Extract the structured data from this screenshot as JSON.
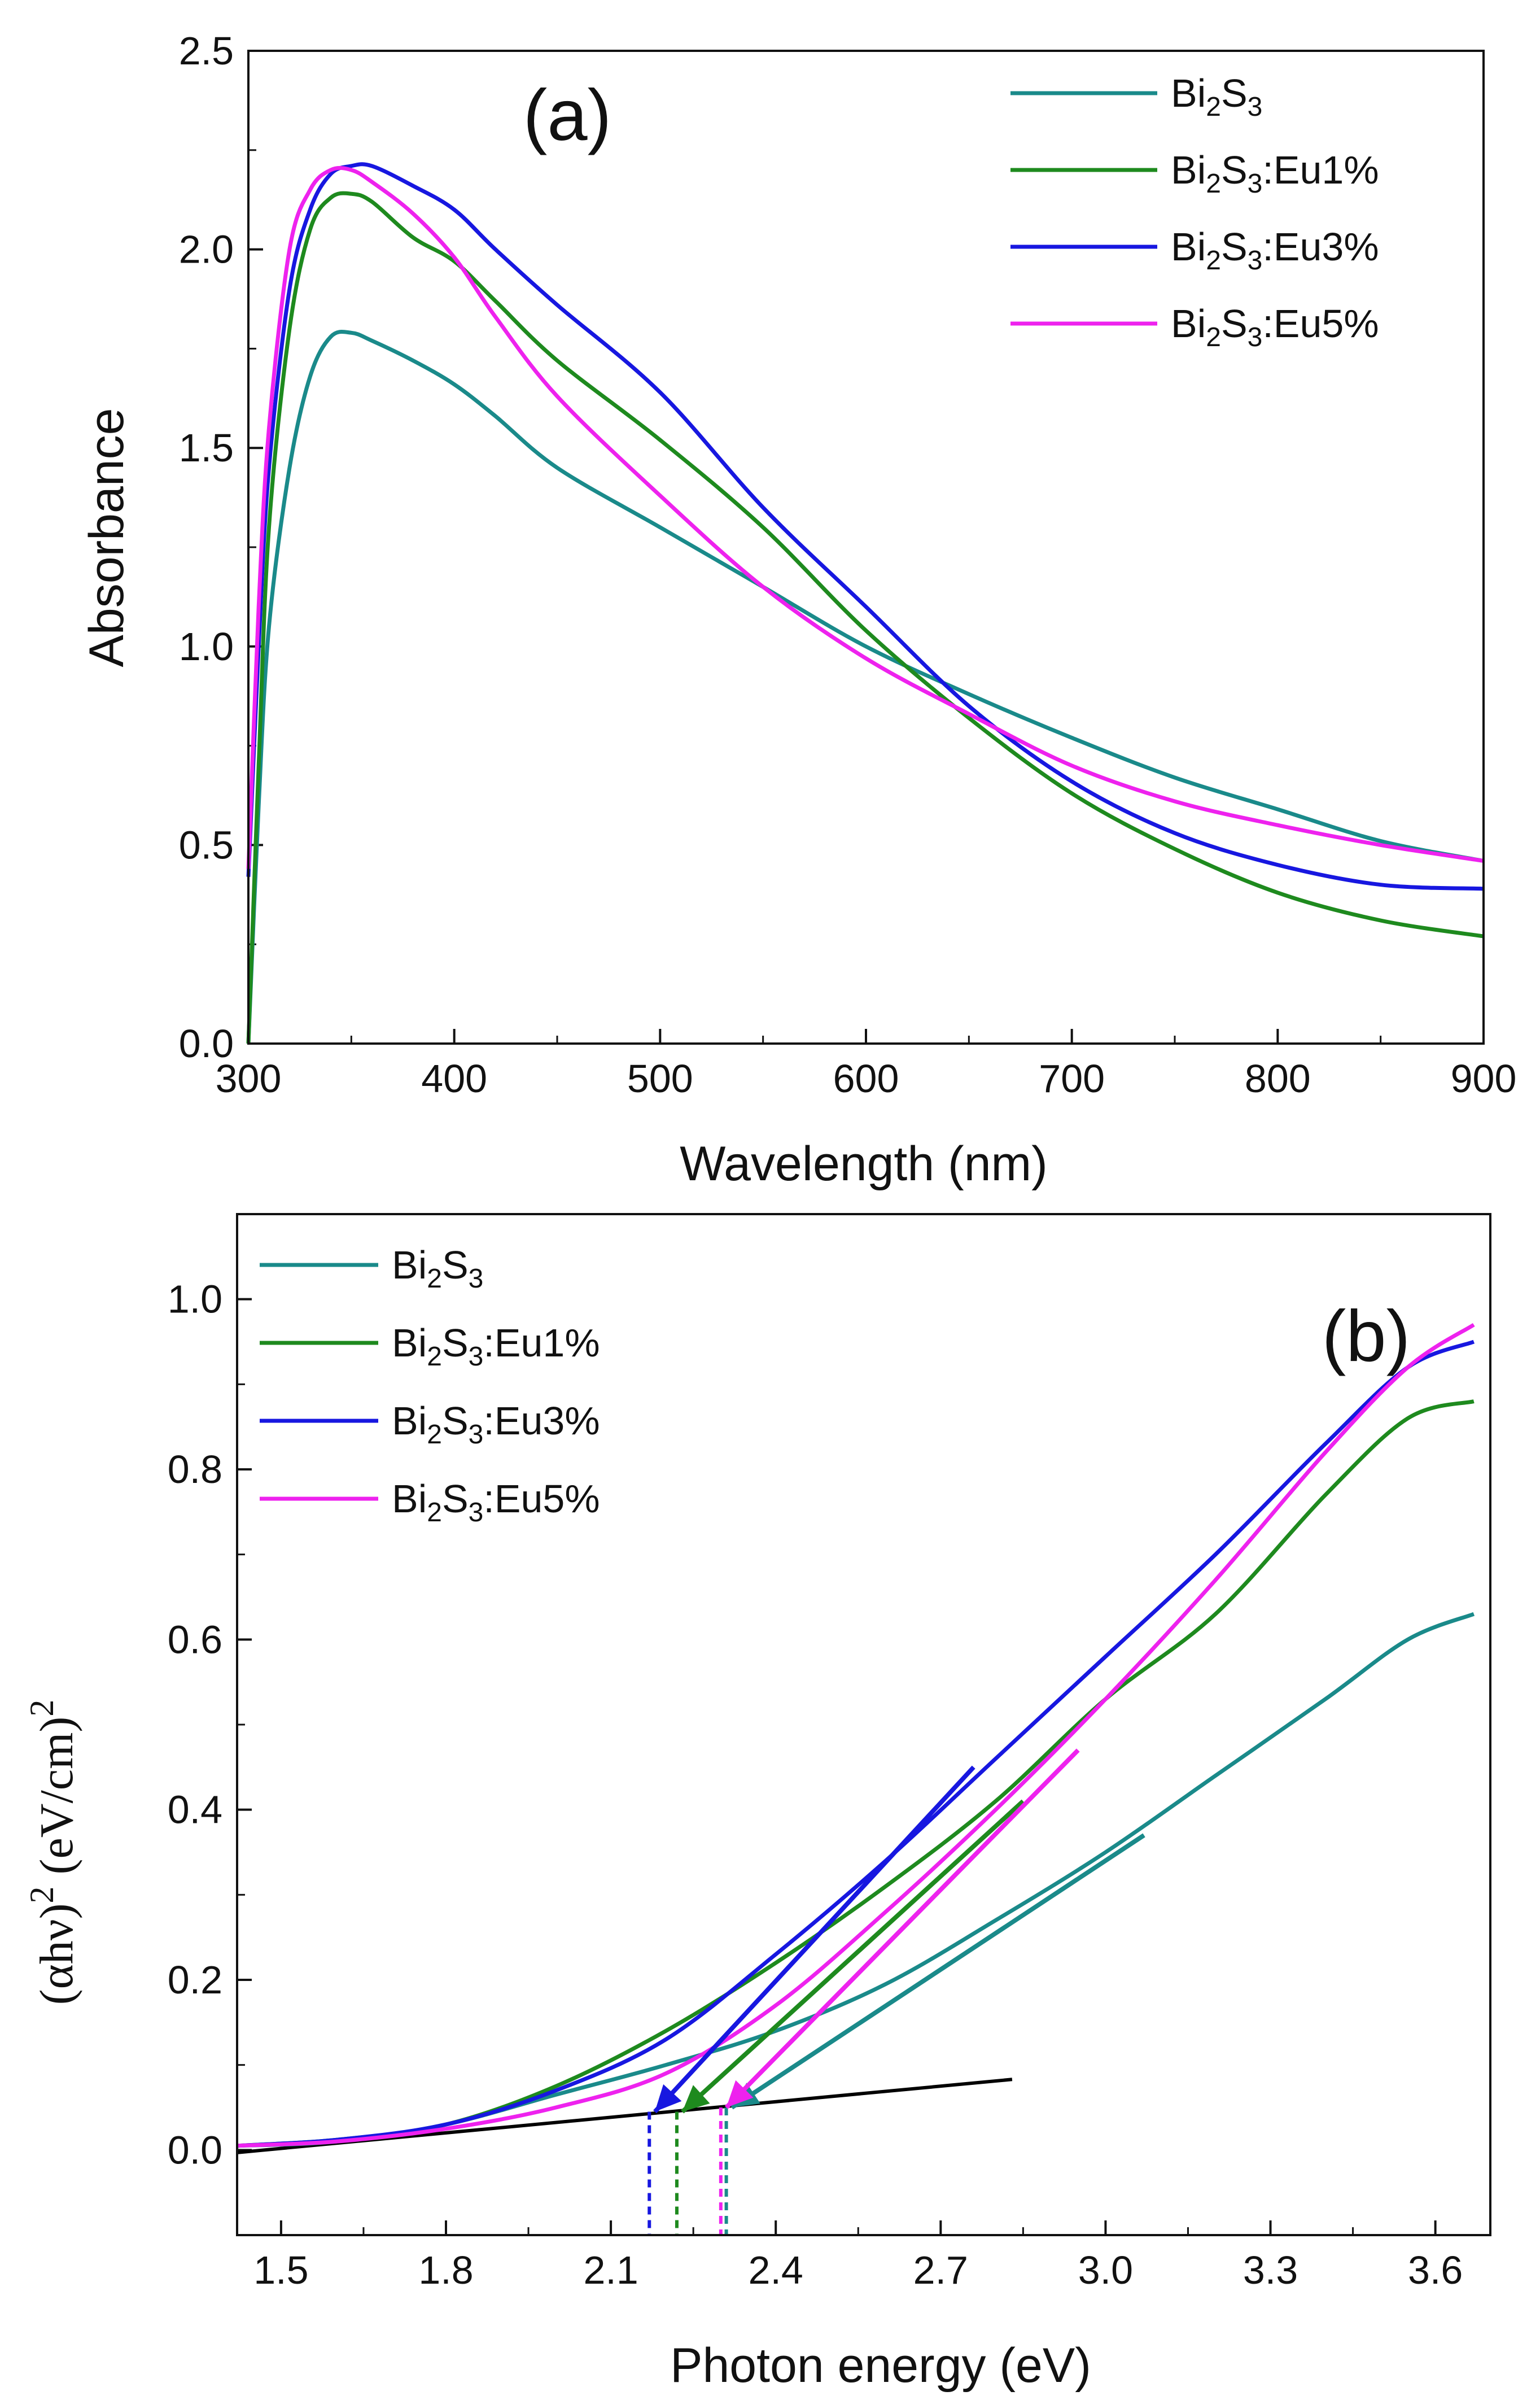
{
  "chart_data": [
    {
      "type": "line",
      "panel_label": "(a)",
      "title": "",
      "xlabel": "Wavelength (nm)",
      "ylabel": "Absorbance",
      "xlim": [
        300,
        900
      ],
      "ylim": [
        0,
        2.5
      ],
      "xticks": [
        300,
        400,
        500,
        600,
        700,
        800,
        900
      ],
      "yticks": [
        0.0,
        0.5,
        1.0,
        1.5,
        2.0,
        2.5
      ],
      "xtick_labels": [
        "300",
        "400",
        "500",
        "600",
        "700",
        "800",
        "900"
      ],
      "ytick_labels": [
        "0.0",
        "0.5",
        "1.0",
        "1.5",
        "2.0",
        "2.5"
      ],
      "legend_position": "top-right",
      "series": [
        {
          "name": "Bi2S3",
          "legend": {
            "base": "Bi",
            "sub1": "2",
            "mid": "S",
            "sub2": "3",
            "suffix": ""
          },
          "color": "#1a8a8a",
          "points": [
            [
              300,
              0.0
            ],
            [
              305,
              0.6
            ],
            [
              310,
              1.05
            ],
            [
              320,
              1.45
            ],
            [
              330,
              1.68
            ],
            [
              340,
              1.78
            ],
            [
              350,
              1.79
            ],
            [
              360,
              1.77
            ],
            [
              380,
              1.72
            ],
            [
              400,
              1.66
            ],
            [
              420,
              1.58
            ],
            [
              450,
              1.45
            ],
            [
              500,
              1.3
            ],
            [
              550,
              1.15
            ],
            [
              600,
              1.0
            ],
            [
              650,
              0.88
            ],
            [
              700,
              0.77
            ],
            [
              750,
              0.67
            ],
            [
              800,
              0.59
            ],
            [
              850,
              0.51
            ],
            [
              900,
              0.46
            ]
          ]
        },
        {
          "name": "Bi2S3:Eu1%",
          "legend": {
            "base": "Bi",
            "sub1": "2",
            "mid": "S",
            "sub2": "3",
            "suffix": ":Eu1%"
          },
          "color": "#1e8a1e",
          "points": [
            [
              300,
              0.0
            ],
            [
              305,
              0.7
            ],
            [
              310,
              1.3
            ],
            [
              320,
              1.8
            ],
            [
              330,
              2.05
            ],
            [
              340,
              2.13
            ],
            [
              350,
              2.14
            ],
            [
              360,
              2.12
            ],
            [
              380,
              2.03
            ],
            [
              400,
              1.97
            ],
            [
              420,
              1.87
            ],
            [
              450,
              1.72
            ],
            [
              500,
              1.52
            ],
            [
              550,
              1.3
            ],
            [
              600,
              1.04
            ],
            [
              650,
              0.82
            ],
            [
              700,
              0.63
            ],
            [
              750,
              0.49
            ],
            [
              800,
              0.38
            ],
            [
              850,
              0.31
            ],
            [
              900,
              0.27
            ]
          ]
        },
        {
          "name": "Bi2S3:Eu3%",
          "legend": {
            "base": "Bi",
            "sub1": "2",
            "mid": "S",
            "sub2": "3",
            "suffix": ":Eu3%"
          },
          "color": "#1717e0",
          "points": [
            [
              300,
              0.42
            ],
            [
              305,
              1.0
            ],
            [
              310,
              1.45
            ],
            [
              320,
              1.9
            ],
            [
              330,
              2.1
            ],
            [
              340,
              2.19
            ],
            [
              350,
              2.21
            ],
            [
              360,
              2.21
            ],
            [
              380,
              2.16
            ],
            [
              400,
              2.1
            ],
            [
              420,
              2.0
            ],
            [
              450,
              1.86
            ],
            [
              500,
              1.64
            ],
            [
              550,
              1.35
            ],
            [
              600,
              1.1
            ],
            [
              650,
              0.85
            ],
            [
              700,
              0.66
            ],
            [
              750,
              0.53
            ],
            [
              800,
              0.45
            ],
            [
              850,
              0.4
            ],
            [
              900,
              0.39
            ]
          ]
        },
        {
          "name": "Bi2S3:Eu5%",
          "legend": {
            "base": "Bi",
            "sub1": "2",
            "mid": "S",
            "sub2": "3",
            "suffix": ":Eu5%"
          },
          "color": "#ee22ee",
          "points": [
            [
              300,
              0.44
            ],
            [
              305,
              1.1
            ],
            [
              310,
              1.55
            ],
            [
              320,
              2.0
            ],
            [
              330,
              2.15
            ],
            [
              340,
              2.2
            ],
            [
              350,
              2.2
            ],
            [
              360,
              2.17
            ],
            [
              380,
              2.09
            ],
            [
              400,
              1.98
            ],
            [
              420,
              1.83
            ],
            [
              450,
              1.63
            ],
            [
              500,
              1.38
            ],
            [
              550,
              1.15
            ],
            [
              600,
              0.97
            ],
            [
              650,
              0.83
            ],
            [
              700,
              0.7
            ],
            [
              750,
              0.61
            ],
            [
              800,
              0.55
            ],
            [
              850,
              0.5
            ],
            [
              900,
              0.46
            ]
          ]
        }
      ]
    },
    {
      "type": "line",
      "panel_label": "(b)",
      "title": "",
      "xlabel": "Photon energy (eV)",
      "ylabel": {
        "prefix": "(αhν)",
        "sup1": "2",
        "mid": " (eV/cm)",
        "sup2": "2"
      },
      "xlim": [
        1.42,
        3.7
      ],
      "ylim": [
        -0.1,
        1.1
      ],
      "xticks": [
        1.5,
        1.8,
        2.1,
        2.4,
        2.7,
        3.0,
        3.3,
        3.6
      ],
      "yticks": [
        0.0,
        0.2,
        0.4,
        0.6,
        0.8,
        1.0
      ],
      "xtick_labels": [
        "1.5",
        "1.8",
        "2.1",
        "2.4",
        "2.7",
        "3.0",
        "3.3",
        "3.6"
      ],
      "ytick_labels": [
        "0.0",
        "0.2",
        "0.4",
        "0.6",
        "0.8",
        "1.0"
      ],
      "legend_position": "top-left",
      "baseline": {
        "color": "#000000",
        "points": [
          [
            1.42,
            -0.003
          ],
          [
            2.83,
            0.083
          ]
        ]
      },
      "series": [
        {
          "name": "Bi2S3",
          "legend": {
            "base": "Bi",
            "sub1": "2",
            "mid": "S",
            "sub2": "3",
            "suffix": ""
          },
          "color": "#1a8a8a",
          "points": [
            [
              1.42,
              0.005
            ],
            [
              1.6,
              0.01
            ],
            [
              1.8,
              0.03
            ],
            [
              2.0,
              0.065
            ],
            [
              2.2,
              0.1
            ],
            [
              2.4,
              0.14
            ],
            [
              2.6,
              0.195
            ],
            [
              2.8,
              0.27
            ],
            [
              3.0,
              0.35
            ],
            [
              3.2,
              0.44
            ],
            [
              3.4,
              0.53
            ],
            [
              3.55,
              0.6
            ],
            [
              3.67,
              0.63
            ]
          ],
          "tangent": [
            [
              2.32,
              0.05
            ],
            [
              3.07,
              0.37
            ]
          ],
          "band_gap": 2.31
        },
        {
          "name": "Bi2S3:Eu1%",
          "legend": {
            "base": "Bi",
            "sub1": "2",
            "mid": "S",
            "sub2": "3",
            "suffix": ":Eu1%"
          },
          "color": "#1e8a1e",
          "points": [
            [
              1.42,
              0.005
            ],
            [
              1.6,
              0.012
            ],
            [
              1.8,
              0.03
            ],
            [
              2.0,
              0.075
            ],
            [
              2.2,
              0.14
            ],
            [
              2.4,
              0.22
            ],
            [
              2.6,
              0.31
            ],
            [
              2.8,
              0.41
            ],
            [
              3.0,
              0.53
            ],
            [
              3.2,
              0.63
            ],
            [
              3.4,
              0.77
            ],
            [
              3.55,
              0.86
            ],
            [
              3.67,
              0.88
            ]
          ],
          "tangent": [
            [
              2.23,
              0.045
            ],
            [
              2.85,
              0.41
            ]
          ],
          "band_gap": 2.22
        },
        {
          "name": "Bi2S3:Eu3%",
          "legend": {
            "base": "Bi",
            "sub1": "2",
            "mid": "S",
            "sub2": "3",
            "suffix": ":Eu3%"
          },
          "color": "#1717e0",
          "points": [
            [
              1.42,
              0.005
            ],
            [
              1.6,
              0.012
            ],
            [
              1.8,
              0.03
            ],
            [
              2.0,
              0.07
            ],
            [
              2.2,
              0.13
            ],
            [
              2.4,
              0.23
            ],
            [
              2.6,
              0.34
            ],
            [
              2.8,
              0.46
            ],
            [
              3.0,
              0.58
            ],
            [
              3.2,
              0.7
            ],
            [
              3.4,
              0.83
            ],
            [
              3.55,
              0.92
            ],
            [
              3.67,
              0.95
            ]
          ],
          "tangent": [
            [
              2.18,
              0.045
            ],
            [
              2.76,
              0.45
            ]
          ],
          "band_gap": 2.17
        },
        {
          "name": "Bi2S3:Eu5%",
          "legend": {
            "base": "Bi",
            "sub1": "2",
            "mid": "S",
            "sub2": "3",
            "suffix": ":Eu5%"
          },
          "color": "#ee22ee",
          "points": [
            [
              1.42,
              0.005
            ],
            [
              1.6,
              0.01
            ],
            [
              1.8,
              0.025
            ],
            [
              2.0,
              0.05
            ],
            [
              2.2,
              0.09
            ],
            [
              2.4,
              0.17
            ],
            [
              2.6,
              0.28
            ],
            [
              2.8,
              0.4
            ],
            [
              3.0,
              0.53
            ],
            [
              3.2,
              0.67
            ],
            [
              3.4,
              0.82
            ],
            [
              3.55,
              0.92
            ],
            [
              3.67,
              0.97
            ]
          ],
          "tangent": [
            [
              2.31,
              0.05
            ],
            [
              2.95,
              0.47
            ]
          ],
          "band_gap": 2.3
        }
      ]
    }
  ]
}
